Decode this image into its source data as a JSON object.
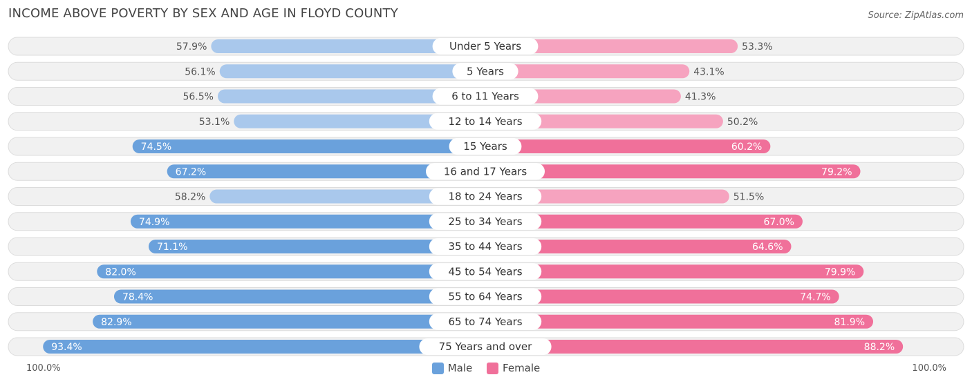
{
  "title": "INCOME ABOVE POVERTY BY SEX AND AGE IN FLOYD COUNTY",
  "source": "Source: ZipAtlas.com",
  "colors": {
    "male_light": "#a9c8ec",
    "male_dark": "#6aa1dc",
    "female_light": "#f6a3bf",
    "female_dark": "#f0709a",
    "row_bg": "#eeeeee"
  },
  "legend": {
    "male": "Male",
    "female": "Female"
  },
  "axis": {
    "left_label": "100.0%",
    "right_label": "100.0%"
  },
  "chart_data": {
    "type": "bar",
    "orientation": "horizontal-diverging",
    "title": "INCOME ABOVE POVERTY BY SEX AND AGE IN FLOYD COUNTY",
    "categories": [
      "Under 5 Years",
      "5 Years",
      "6 to 11 Years",
      "12 to 14 Years",
      "15 Years",
      "16 and 17 Years",
      "18 to 24 Years",
      "25 to 34 Years",
      "35 to 44 Years",
      "45 to 54 Years",
      "55 to 64 Years",
      "65 to 74 Years",
      "75 Years and over"
    ],
    "series": [
      {
        "name": "Male",
        "values": [
          57.9,
          56.1,
          56.5,
          53.1,
          74.5,
          67.2,
          58.2,
          74.9,
          71.1,
          82.0,
          78.4,
          82.9,
          93.4
        ],
        "labels": [
          "57.9%",
          "56.1%",
          "56.5%",
          "53.1%",
          "74.5%",
          "67.2%",
          "58.2%",
          "74.9%",
          "71.1%",
          "82.0%",
          "78.4%",
          "82.9%",
          "93.4%"
        ]
      },
      {
        "name": "Female",
        "values": [
          53.3,
          43.1,
          41.3,
          50.2,
          60.2,
          79.2,
          51.5,
          67.0,
          64.6,
          79.9,
          74.7,
          81.9,
          88.2
        ],
        "labels": [
          "53.3%",
          "43.1%",
          "41.3%",
          "50.2%",
          "60.2%",
          "79.2%",
          "51.5%",
          "67.0%",
          "64.6%",
          "79.9%",
          "74.7%",
          "81.9%",
          "88.2%"
        ]
      }
    ],
    "xlim": [
      0,
      100
    ],
    "xlabel_left": "100.0%",
    "xlabel_right": "100.0%",
    "legend_position": "bottom-center"
  }
}
